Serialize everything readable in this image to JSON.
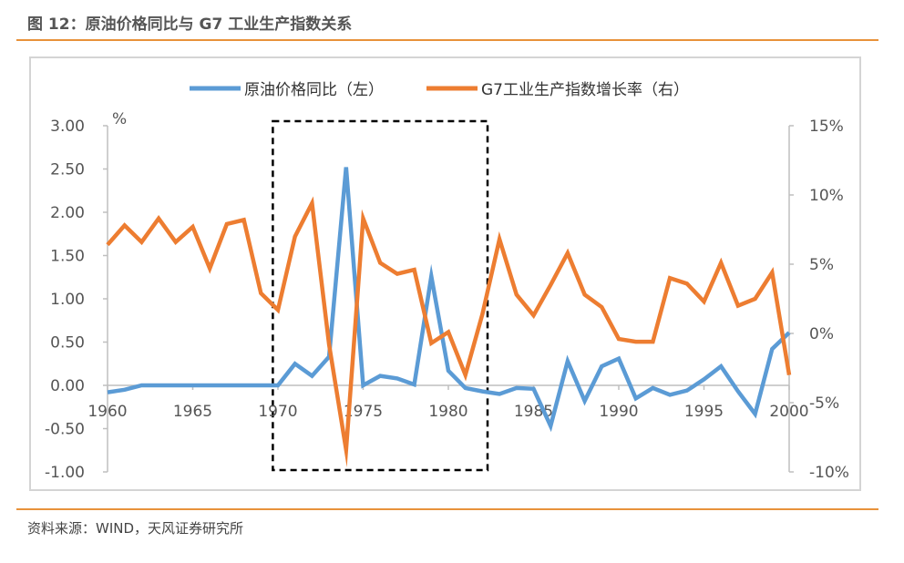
{
  "header": {
    "title": "图 12：原油价格同比与 G7 工业生产指数关系"
  },
  "footer": {
    "source": "资料来源：WIND，天风证券研究所"
  },
  "chart_data": {
    "type": "line",
    "legend_position": "top-center",
    "grid": false,
    "highlight_box": {
      "x_range": [
        1969.7,
        1982.3
      ],
      "style": "dashed"
    },
    "x": {
      "range": [
        1960,
        2000
      ],
      "ticks": [
        1960,
        1965,
        1970,
        1975,
        1980,
        1985,
        1990,
        1995,
        2000
      ],
      "tick_labels": [
        "1960",
        "1965",
        "1970",
        "1975",
        "1980",
        "1985",
        "1990",
        "1995",
        "2000"
      ]
    },
    "y_left": {
      "unit": "%",
      "range": [
        -1.0,
        3.0
      ],
      "ticks": [
        -1.0,
        -0.5,
        0.0,
        0.5,
        1.0,
        1.5,
        2.0,
        2.5,
        3.0
      ],
      "tick_labels": [
        "-1.00",
        "-0.50",
        "0.00",
        "0.50",
        "1.00",
        "1.50",
        "2.00",
        "2.50",
        "3.00"
      ]
    },
    "y_right": {
      "range": [
        -10,
        15
      ],
      "ticks": [
        -10,
        -5,
        0,
        5,
        10,
        15
      ],
      "tick_labels": [
        "-10%",
        "-5%",
        "0%",
        "5%",
        "10%",
        "15%"
      ]
    },
    "series": [
      {
        "name": "原油价格同比（左）",
        "axis": "left",
        "color": "#5b9bd5",
        "points": [
          [
            1960,
            -0.08
          ],
          [
            1961,
            -0.05
          ],
          [
            1962,
            0.0
          ],
          [
            1963,
            0.0
          ],
          [
            1964,
            0.0
          ],
          [
            1965,
            0.0
          ],
          [
            1966,
            0.0
          ],
          [
            1967,
            0.0
          ],
          [
            1968,
            0.0
          ],
          [
            1969,
            0.0
          ],
          [
            1970,
            0.0
          ],
          [
            1971,
            0.25
          ],
          [
            1972,
            0.11
          ],
          [
            1973,
            0.33
          ],
          [
            1974,
            2.52
          ],
          [
            1975,
            0.0
          ],
          [
            1976,
            0.11
          ],
          [
            1977,
            0.08
          ],
          [
            1978,
            0.01
          ],
          [
            1979,
            1.26
          ],
          [
            1980,
            0.17
          ],
          [
            1981,
            -0.03
          ],
          [
            1982,
            -0.07
          ],
          [
            1983,
            -0.1
          ],
          [
            1984,
            -0.03
          ],
          [
            1985,
            -0.04
          ],
          [
            1986,
            -0.47
          ],
          [
            1987,
            0.28
          ],
          [
            1988,
            -0.18
          ],
          [
            1989,
            0.22
          ],
          [
            1990,
            0.31
          ],
          [
            1991,
            -0.15
          ],
          [
            1992,
            -0.03
          ],
          [
            1993,
            -0.11
          ],
          [
            1994,
            -0.06
          ],
          [
            1995,
            0.07
          ],
          [
            1996,
            0.22
          ],
          [
            1997,
            -0.07
          ],
          [
            1998,
            -0.33
          ],
          [
            1999,
            0.42
          ],
          [
            2000,
            0.61
          ]
        ]
      },
      {
        "name": "G7工业生产指数增长率（右）",
        "axis": "right",
        "color": "#ed7d31",
        "points": [
          [
            1960,
            6.4
          ],
          [
            1961,
            7.8
          ],
          [
            1962,
            6.6
          ],
          [
            1963,
            8.3
          ],
          [
            1964,
            6.6
          ],
          [
            1965,
            7.7
          ],
          [
            1966,
            4.7
          ],
          [
            1967,
            7.9
          ],
          [
            1968,
            8.2
          ],
          [
            1969,
            2.9
          ],
          [
            1970,
            1.7
          ],
          [
            1971,
            7.0
          ],
          [
            1972,
            9.4
          ],
          [
            1973,
            -0.8
          ],
          [
            1974,
            -8.4
          ],
          [
            1975,
            8.3
          ],
          [
            1976,
            5.1
          ],
          [
            1977,
            4.3
          ],
          [
            1978,
            4.6
          ],
          [
            1979,
            -0.7
          ],
          [
            1980,
            0.1
          ],
          [
            1981,
            -3.0
          ],
          [
            1982,
            1.4
          ],
          [
            1983,
            6.8
          ],
          [
            1984,
            2.8
          ],
          [
            1985,
            1.3
          ],
          [
            1986,
            3.5
          ],
          [
            1987,
            5.8
          ],
          [
            1988,
            2.8
          ],
          [
            1989,
            1.9
          ],
          [
            1990,
            -0.4
          ],
          [
            1991,
            -0.6
          ],
          [
            1992,
            -0.6
          ],
          [
            1993,
            4.0
          ],
          [
            1994,
            3.6
          ],
          [
            1995,
            2.3
          ],
          [
            1996,
            5.1
          ],
          [
            1997,
            2.0
          ],
          [
            1998,
            2.5
          ],
          [
            1999,
            4.4
          ],
          [
            2000,
            -3.0
          ]
        ]
      }
    ]
  }
}
